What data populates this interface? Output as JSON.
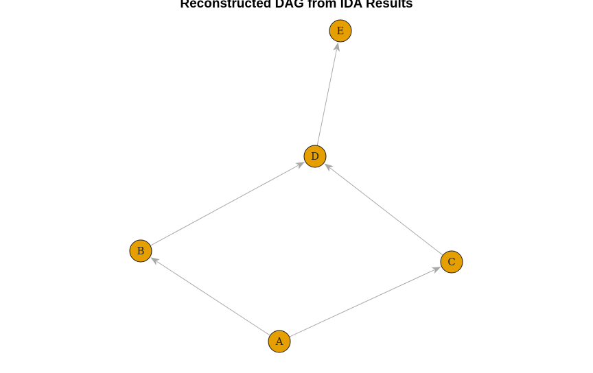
{
  "title": "Reconstructed DAG from IDA Results",
  "colors": {
    "node_fill": "#E69F00",
    "node_stroke": "#1a1a1a",
    "edge": "#A9A9A9",
    "label": "#222222"
  },
  "nodes": [
    {
      "id": "A",
      "label": "A"
    },
    {
      "id": "B",
      "label": "B"
    },
    {
      "id": "C",
      "label": "C"
    },
    {
      "id": "D",
      "label": "D"
    },
    {
      "id": "E",
      "label": "E"
    }
  ],
  "edges": [
    {
      "from": "A",
      "to": "B"
    },
    {
      "from": "A",
      "to": "C"
    },
    {
      "from": "B",
      "to": "D"
    },
    {
      "from": "C",
      "to": "D"
    },
    {
      "from": "D",
      "to": "E"
    }
  ]
}
